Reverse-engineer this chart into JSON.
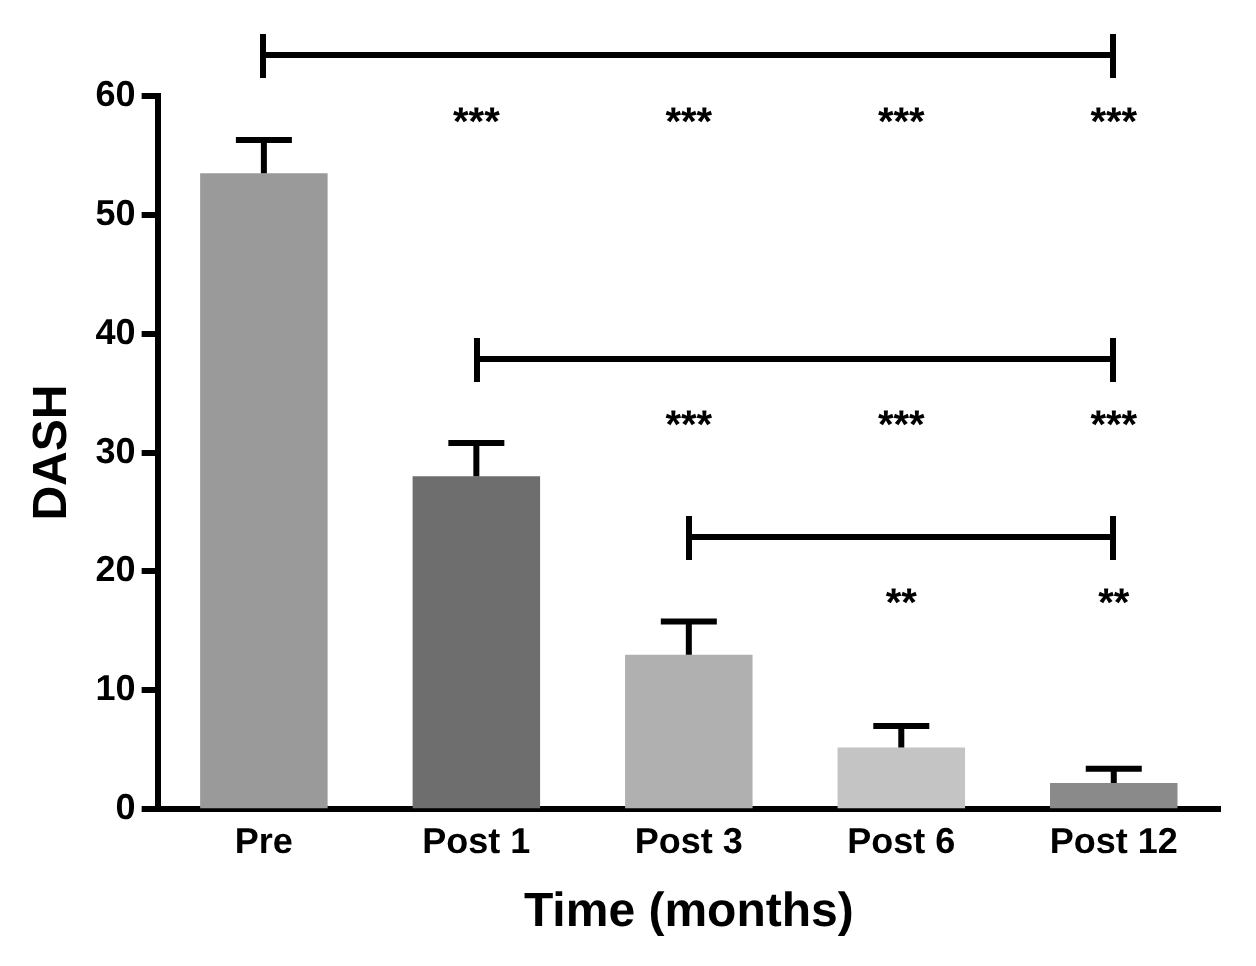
{
  "chart_data": {
    "type": "bar",
    "xlabel": "Time (months)",
    "ylabel": "DASH",
    "categories": [
      "Pre",
      "Post 1",
      "Post 3",
      "Post 6",
      "Post 12"
    ],
    "values": [
      53.5,
      28,
      13,
      5.2,
      2.2
    ],
    "errors": [
      2.8,
      2.8,
      2.8,
      1.8,
      1.2
    ],
    "colors": [
      "#9a9a9a",
      "#6e6e6e",
      "#b0b0b0",
      "#c4c4c4",
      "#8a8a8a"
    ],
    "ylim": [
      0,
      60
    ],
    "yticks": [
      0,
      10,
      20,
      30,
      40,
      50,
      60
    ],
    "grid": false,
    "legend": false,
    "annotations": [
      "***",
      "***",
      "***",
      "***",
      "***",
      "***",
      "***",
      "**",
      "**"
    ]
  }
}
